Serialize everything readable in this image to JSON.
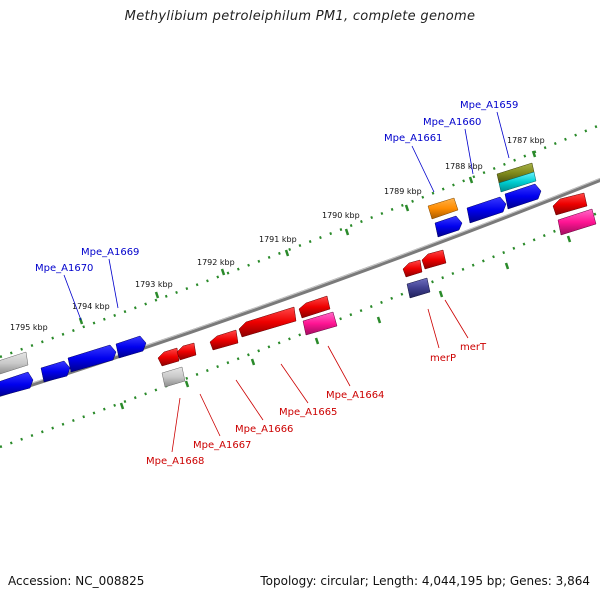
{
  "title": "Methylibium petroleiphilum PM1, complete genome",
  "footer": {
    "accession": "Accession: NC_008825",
    "summary": "Topology: circular; Length: 4,044,195 bp; Genes: 3,864"
  },
  "colors": {
    "backbone": "#7a7a7a",
    "ruler": "#2a8a2a",
    "forward_label": "#0000cc",
    "reverse_label": "#cc0000"
  },
  "ruler_labels": [
    "1787 kbp",
    "1788 kbp",
    "1789 kbp",
    "1790 kbp",
    "1791 kbp",
    "1792 kbp",
    "1793 kbp",
    "1794 kbp",
    "1795 kbp"
  ],
  "forward_genes": [
    {
      "label": "Mpe_A1659",
      "color": "#0000ff"
    },
    {
      "label": "Mpe_A1660",
      "color": "#0000ff"
    },
    {
      "label": "Mpe_A1661",
      "color": "#0000ff"
    },
    {
      "label": "Mpe_A1669",
      "color": "#0000ff"
    },
    {
      "label": "Mpe_A1670",
      "color": "#0000ff"
    }
  ],
  "reverse_genes": [
    {
      "label": "Mpe_A1664",
      "color": "#ff0000"
    },
    {
      "label": "Mpe_A1665",
      "color": "#ff0000"
    },
    {
      "label": "Mpe_A1666",
      "color": "#ff0000"
    },
    {
      "label": "Mpe_A1667",
      "color": "#ff0000"
    },
    {
      "label": "Mpe_A1668",
      "color": "#ff0000"
    },
    {
      "label": "merP",
      "color": "#ff0000"
    },
    {
      "label": "merT",
      "color": "#ff0000"
    }
  ]
}
